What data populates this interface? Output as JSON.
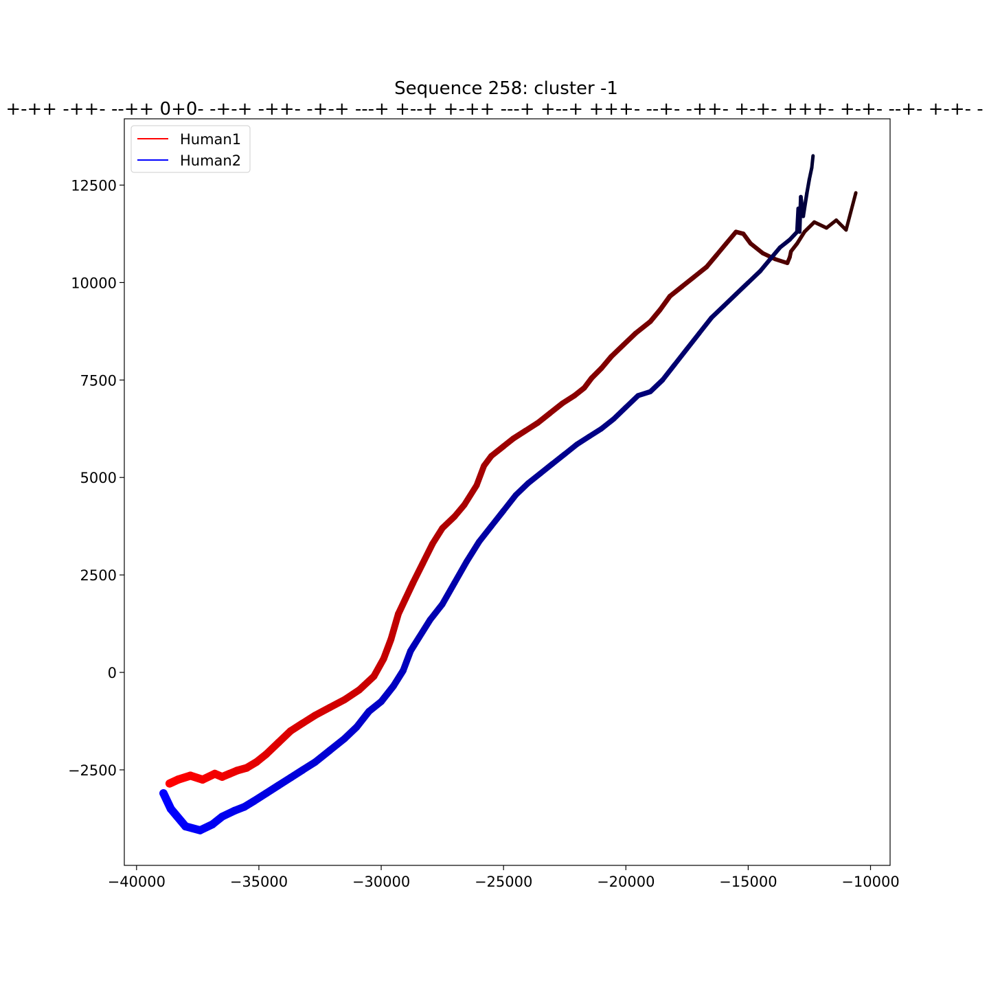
{
  "chart_data": {
    "type": "line",
    "title": "Sequence 258: cluster -1",
    "subtitle": "+-++ -++- --++ 0+0- -+-+ -++- -+-+ ---+ +--+ +-++ ---+ +--+ +++- --+- -++- +-+- +++- +-+- --+- +-+- -",
    "xlim": [
      -40500,
      -9200
    ],
    "ylim": [
      -4950,
      14200
    ],
    "xticks": [
      -40000,
      -35000,
      -30000,
      -25000,
      -20000,
      -15000,
      -10000
    ],
    "yticks": [
      -2500,
      0,
      2500,
      5000,
      7500,
      10000,
      12500
    ],
    "xtick_labels": [
      "−40000",
      "−35000",
      "−30000",
      "−25000",
      "−20000",
      "−15000",
      "−10000"
    ],
    "ytick_labels": [
      "−2500",
      "0",
      "2500",
      "5000",
      "7500",
      "10000",
      "12500"
    ],
    "legend_position": "upper-left",
    "series": [
      {
        "name": "Human1",
        "color": "#ff0000",
        "end_color": "#330000",
        "x": [
          -38650,
          -38300,
          -37800,
          -37300,
          -36800,
          -36500,
          -36200,
          -35900,
          -35500,
          -35100,
          -34700,
          -34200,
          -33700,
          -33200,
          -32700,
          -32100,
          -31500,
          -30900,
          -30300,
          -29900,
          -29600,
          -29300,
          -29000,
          -28700,
          -28300,
          -27900,
          -27500,
          -27000,
          -26600,
          -26100,
          -25800,
          -25500,
          -25000,
          -24600,
          -24100,
          -23600,
          -23100,
          -22600,
          -22100,
          -21700,
          -21400,
          -21000,
          -20600,
          -20100,
          -19600,
          -19000,
          -18600,
          -18200,
          -17700,
          -17200,
          -16700,
          -16300,
          -15900,
          -15500,
          -15200,
          -14900,
          -14400,
          -13900,
          -13400,
          -13300,
          -13250,
          -13000,
          -12700,
          -12300,
          -11800,
          -11400,
          -11000,
          -10600
        ],
        "y": [
          -2850,
          -2750,
          -2650,
          -2750,
          -2600,
          -2680,
          -2600,
          -2520,
          -2450,
          -2300,
          -2100,
          -1800,
          -1500,
          -1300,
          -1100,
          -900,
          -700,
          -450,
          -100,
          350,
          850,
          1500,
          1900,
          2300,
          2800,
          3300,
          3700,
          4000,
          4300,
          4800,
          5300,
          5550,
          5800,
          6000,
          6200,
          6400,
          6650,
          6900,
          7100,
          7300,
          7550,
          7800,
          8100,
          8400,
          8700,
          9000,
          9300,
          9650,
          9900,
          10150,
          10400,
          10700,
          11000,
          11300,
          11250,
          11000,
          10750,
          10600,
          10500,
          10650,
          10800,
          11000,
          11300,
          11550,
          11400,
          11600,
          11350,
          12300
        ]
      },
      {
        "name": "Human2",
        "color": "#0000ff",
        "end_color": "#000033",
        "x": [
          -38900,
          -38600,
          -38000,
          -37400,
          -36900,
          -36500,
          -36000,
          -35600,
          -35200,
          -34700,
          -34200,
          -33700,
          -33200,
          -32700,
          -32100,
          -31500,
          -31000,
          -30500,
          -30000,
          -29500,
          -29100,
          -28800,
          -28650,
          -28450,
          -28000,
          -27500,
          -27000,
          -26500,
          -26000,
          -25500,
          -25000,
          -24500,
          -24000,
          -23500,
          -23000,
          -22500,
          -22000,
          -21500,
          -21000,
          -20500,
          -20000,
          -19500,
          -19000,
          -18500,
          -18000,
          -17500,
          -17000,
          -16500,
          -16000,
          -15500,
          -15000,
          -14500,
          -14100,
          -13700,
          -13300,
          -13000,
          -12950,
          -12900,
          -12850,
          -12750,
          -12600,
          -12500,
          -12400,
          -12350
        ],
        "y": [
          -3100,
          -3500,
          -3950,
          -4050,
          -3900,
          -3700,
          -3550,
          -3450,
          -3300,
          -3100,
          -2900,
          -2700,
          -2500,
          -2300,
          -2000,
          -1700,
          -1400,
          -1000,
          -750,
          -350,
          50,
          550,
          700,
          900,
          1350,
          1750,
          2300,
          2850,
          3350,
          3750,
          4150,
          4550,
          4850,
          5100,
          5350,
          5600,
          5850,
          6050,
          6250,
          6500,
          6800,
          7100,
          7200,
          7500,
          7900,
          8300,
          8700,
          9100,
          9400,
          9700,
          10000,
          10300,
          10600,
          10900,
          11100,
          11300,
          11900,
          11300,
          12200,
          11700,
          12300,
          12650,
          12950,
          13250
        ]
      }
    ]
  }
}
